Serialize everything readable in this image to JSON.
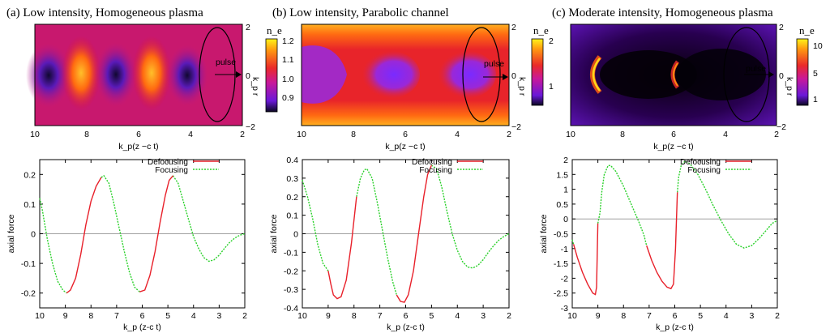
{
  "figure": {
    "panel_titles": [
      "(a) Low intensity, Homogeneous plasma",
      "(b) Low intensity, Parabolic channel",
      "(c) Moderate intensity, Homogeneous plasma"
    ],
    "pulse_label": "pulse",
    "colorbar_label": "n_e",
    "colorbars": [
      {
        "ticks": [
          "1.2",
          "1.1",
          "1.0",
          "0.9"
        ],
        "range": [
          0.85,
          1.25
        ]
      },
      {
        "ticks": [
          "2",
          "1"
        ],
        "range": [
          0.5,
          2.0
        ]
      },
      {
        "ticks": [
          "10",
          "5",
          "1"
        ],
        "range": [
          0,
          11
        ]
      }
    ],
    "top_axis": {
      "xlabel": "k_p(z −c t)",
      "ylabel": "k_p r",
      "xticks": [
        "10",
        "8",
        "6",
        "4",
        "2"
      ],
      "yticks": [
        "2",
        "0",
        "−2"
      ]
    },
    "legend": {
      "defocusing": "Defocusing",
      "focusing": "Focusing"
    },
    "bottom_axis": {
      "xlabel": "k_p (z-c t)",
      "ylabel": "axial force"
    },
    "colors": {
      "defocusing": "#e8202a",
      "focusing": "#2ad12a",
      "zero": "#a0a0a0"
    }
  },
  "chart_data": [
    {
      "type": "line",
      "title": "(a) Low intensity, Homogeneous plasma",
      "xlabel": "k_p (z-c t)",
      "ylabel": "axial force",
      "xlim": [
        10,
        2
      ],
      "ylim": [
        -0.25,
        0.25
      ],
      "xticks": [
        "10",
        "9",
        "8",
        "7",
        "6",
        "5",
        "4",
        "3",
        "2"
      ],
      "yticks": [
        "0.2",
        "0.1",
        "0",
        "-0.1",
        "-0.2"
      ],
      "series": [
        {
          "name": "Focusing",
          "segments": [
            [
              [
                10,
                0.12
              ],
              [
                9.9,
                0.08
              ],
              [
                9.7,
                -0.02
              ],
              [
                9.5,
                -0.1
              ],
              [
                9.3,
                -0.16
              ],
              [
                9.1,
                -0.19
              ],
              [
                8.95,
                -0.2
              ]
            ],
            [
              [
                7.6,
                0.19
              ],
              [
                7.5,
                0.196
              ],
              [
                7.3,
                0.17
              ],
              [
                7.1,
                0.1
              ],
              [
                6.9,
                0.02
              ],
              [
                6.7,
                -0.06
              ],
              [
                6.5,
                -0.13
              ],
              [
                6.3,
                -0.18
              ],
              [
                6.1,
                -0.196
              ]
            ],
            [
              [
                4.8,
                0.196
              ],
              [
                4.6,
                0.17
              ],
              [
                4.4,
                0.11
              ],
              [
                4.2,
                0.05
              ],
              [
                4.0,
                -0.01
              ],
              [
                3.8,
                -0.05
              ],
              [
                3.6,
                -0.08
              ],
              [
                3.4,
                -0.093
              ],
              [
                3.2,
                -0.088
              ],
              [
                3.0,
                -0.072
              ],
              [
                2.8,
                -0.05
              ],
              [
                2.6,
                -0.03
              ],
              [
                2.4,
                -0.015
              ],
              [
                2.2,
                -0.005
              ],
              [
                2.0,
                0
              ]
            ]
          ]
        },
        {
          "name": "Defocusing",
          "segments": [
            [
              [
                8.95,
                -0.2
              ],
              [
                8.8,
                -0.19
              ],
              [
                8.6,
                -0.15
              ],
              [
                8.4,
                -0.07
              ],
              [
                8.2,
                0.03
              ],
              [
                8.0,
                0.11
              ],
              [
                7.8,
                0.16
              ],
              [
                7.6,
                0.19
              ]
            ],
            [
              [
                6.1,
                -0.196
              ],
              [
                5.9,
                -0.19
              ],
              [
                5.7,
                -0.14
              ],
              [
                5.5,
                -0.06
              ],
              [
                5.3,
                0.04
              ],
              [
                5.1,
                0.13
              ],
              [
                4.95,
                0.18
              ],
              [
                4.8,
                0.196
              ]
            ]
          ]
        }
      ]
    },
    {
      "type": "line",
      "title": "(b) Low intensity, Parabolic channel",
      "xlabel": "k_p (z-c t)",
      "ylabel": "axial force",
      "xlim": [
        10,
        2
      ],
      "ylim": [
        -0.4,
        0.4
      ],
      "xticks": [
        "10",
        "9",
        "8",
        "7",
        "6",
        "5",
        "4",
        "3",
        "2"
      ],
      "yticks": [
        "0.4",
        "0.3",
        "0.2",
        "0.1",
        "0",
        "-0.1",
        "-0.2",
        "-0.3",
        "-0.4"
      ],
      "series": [
        {
          "name": "Focusing",
          "segments": [
            [
              [
                10,
                0.29
              ],
              [
                9.8,
                0.2
              ],
              [
                9.6,
                0.08
              ],
              [
                9.4,
                -0.06
              ],
              [
                9.2,
                -0.16
              ],
              [
                9.0,
                -0.2
              ]
            ],
            [
              [
                7.9,
                0.2
              ],
              [
                7.75,
                0.3
              ],
              [
                7.6,
                0.345
              ],
              [
                7.5,
                0.35
              ],
              [
                7.3,
                0.3
              ],
              [
                7.1,
                0.17
              ],
              [
                6.9,
                0.02
              ],
              [
                6.7,
                -0.13
              ],
              [
                6.5,
                -0.26
              ],
              [
                6.35,
                -0.33
              ]
            ],
            [
              [
                5.0,
                0.37
              ],
              [
                4.8,
                0.35
              ],
              [
                4.6,
                0.25
              ],
              [
                4.4,
                0.12
              ],
              [
                4.2,
                0.0
              ],
              [
                4.0,
                -0.09
              ],
              [
                3.8,
                -0.15
              ],
              [
                3.6,
                -0.18
              ],
              [
                3.4,
                -0.185
              ],
              [
                3.2,
                -0.17
              ],
              [
                3.0,
                -0.14
              ],
              [
                2.8,
                -0.1
              ],
              [
                2.6,
                -0.065
              ],
              [
                2.4,
                -0.035
              ],
              [
                2.2,
                -0.015
              ],
              [
                2.0,
                0
              ]
            ]
          ]
        },
        {
          "name": "Defocusing",
          "segments": [
            [
              [
                9.0,
                -0.2
              ],
              [
                8.9,
                -0.27
              ],
              [
                8.8,
                -0.33
              ],
              [
                8.65,
                -0.35
              ],
              [
                8.5,
                -0.34
              ],
              [
                8.3,
                -0.25
              ],
              [
                8.1,
                -0.05
              ],
              [
                7.9,
                0.2
              ]
            ],
            [
              [
                6.35,
                -0.33
              ],
              [
                6.2,
                -0.365
              ],
              [
                6.05,
                -0.37
              ],
              [
                5.9,
                -0.33
              ],
              [
                5.7,
                -0.2
              ],
              [
                5.5,
                0.0
              ],
              [
                5.3,
                0.2
              ],
              [
                5.15,
                0.32
              ],
              [
                5.0,
                0.37
              ]
            ]
          ]
        }
      ]
    },
    {
      "type": "line",
      "title": "(c) Moderate intensity, Homogeneous plasma",
      "xlabel": "k_p (z-c t)",
      "ylabel": "axial force",
      "xlim": [
        10,
        2
      ],
      "ylim": [
        -3,
        2
      ],
      "xticks": [
        "10",
        "9",
        "8",
        "7",
        "6",
        "5",
        "4",
        "3",
        "2"
      ],
      "yticks": [
        "2",
        "1.5",
        "1",
        "0.5",
        "0",
        "-0.5",
        "-1",
        "-1.5",
        "-2",
        "-2.5",
        "-3"
      ],
      "series": [
        {
          "name": "Focusing",
          "segments": [
            [
              [
                10,
                -0.7
              ],
              [
                9.95,
                -0.85
              ]
            ],
            [
              [
                9.0,
                -0.15
              ],
              [
                8.92,
                0.2
              ],
              [
                8.85,
                0.9
              ],
              [
                8.75,
                1.5
              ],
              [
                8.6,
                1.8
              ],
              [
                8.5,
                1.8
              ],
              [
                8.3,
                1.6
              ],
              [
                8.0,
                1.1
              ],
              [
                7.7,
                0.5
              ],
              [
                7.4,
                -0.1
              ],
              [
                7.2,
                -0.55
              ],
              [
                7.1,
                -0.9
              ]
            ],
            [
              [
                5.9,
                0.9
              ],
              [
                5.85,
                1.4
              ],
              [
                5.75,
                1.8
              ],
              [
                5.6,
                1.95
              ],
              [
                5.4,
                1.85
              ],
              [
                5.1,
                1.5
              ],
              [
                4.8,
                1.0
              ],
              [
                4.5,
                0.45
              ],
              [
                4.2,
                -0.05
              ],
              [
                3.9,
                -0.5
              ],
              [
                3.6,
                -0.85
              ],
              [
                3.3,
                -0.98
              ],
              [
                3.0,
                -0.9
              ],
              [
                2.7,
                -0.65
              ],
              [
                2.4,
                -0.35
              ],
              [
                2.2,
                -0.15
              ],
              [
                2.0,
                -0.05
              ]
            ]
          ]
        },
        {
          "name": "Defocusing",
          "segments": [
            [
              [
                9.95,
                -0.85
              ],
              [
                9.8,
                -1.3
              ],
              [
                9.6,
                -1.8
              ],
              [
                9.4,
                -2.2
              ],
              [
                9.2,
                -2.5
              ],
              [
                9.1,
                -2.55
              ],
              [
                9.05,
                -2.3
              ],
              [
                9.0,
                -0.15
              ]
            ],
            [
              [
                7.1,
                -0.9
              ],
              [
                6.9,
                -1.4
              ],
              [
                6.7,
                -1.8
              ],
              [
                6.5,
                -2.1
              ],
              [
                6.3,
                -2.3
              ],
              [
                6.15,
                -2.35
              ],
              [
                6.05,
                -2.2
              ],
              [
                5.97,
                -1.0
              ],
              [
                5.9,
                0.9
              ]
            ]
          ]
        }
      ]
    }
  ]
}
